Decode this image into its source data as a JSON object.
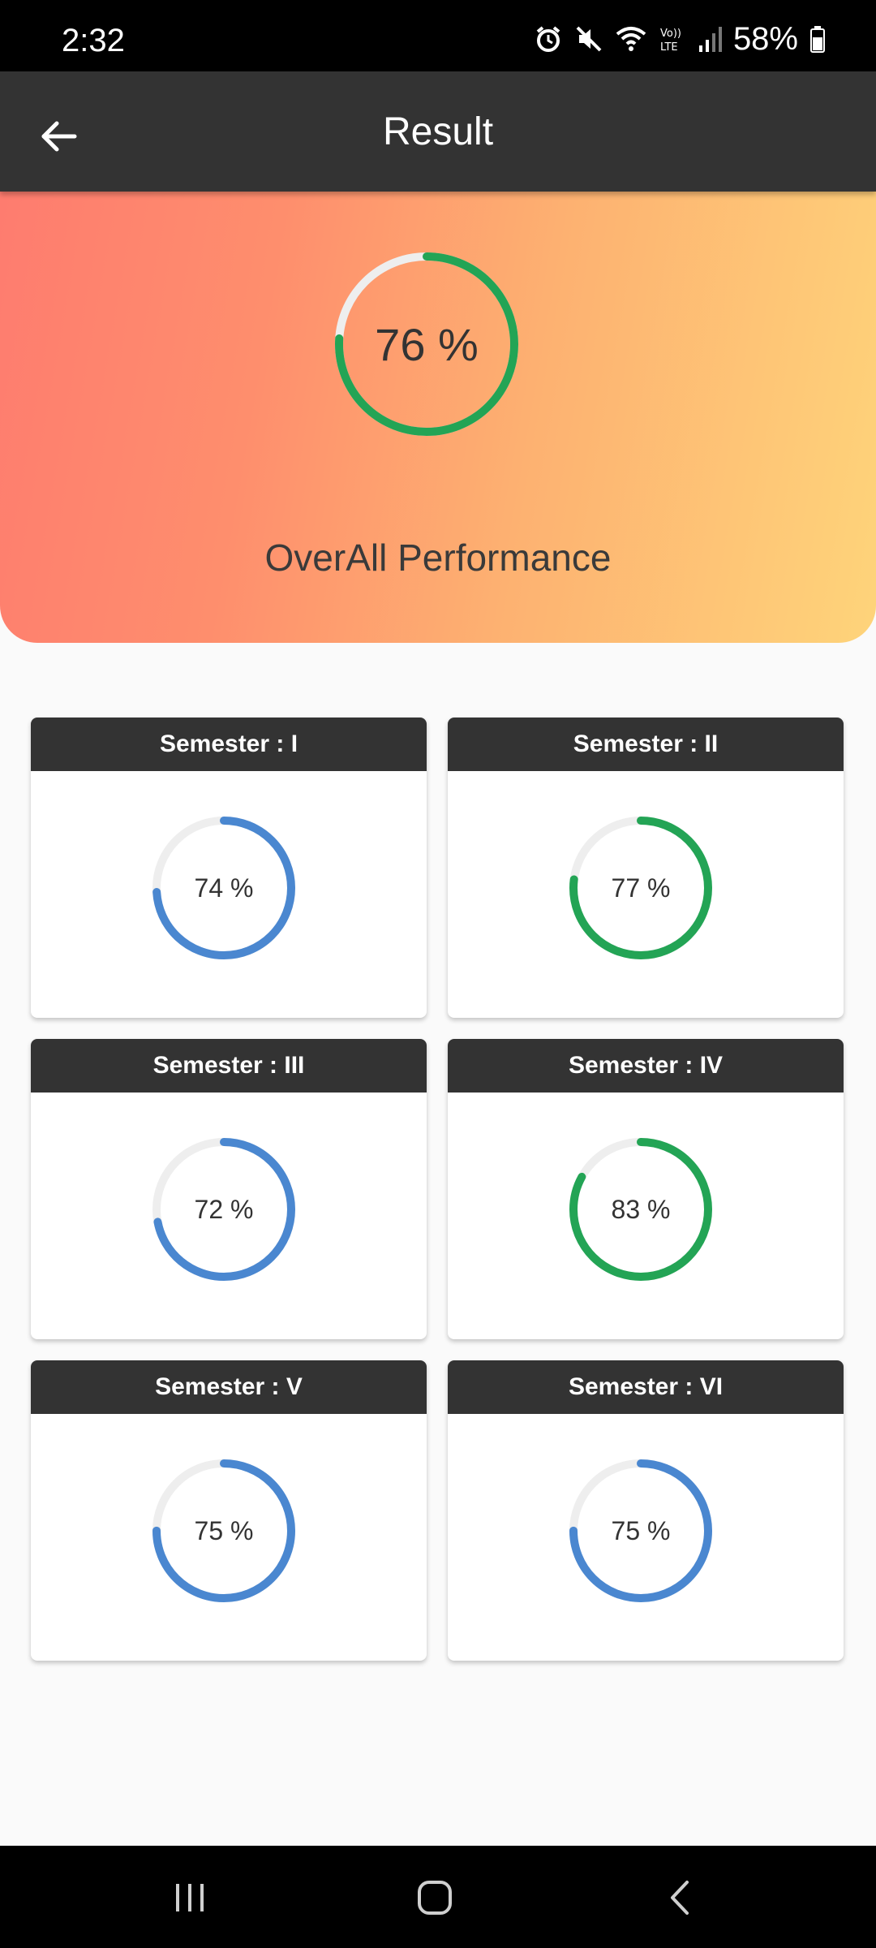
{
  "status_bar": {
    "time": "2:32",
    "battery": "58%",
    "icons": [
      "alarm-icon",
      "mute-icon",
      "wifi-icon",
      "volte-icon",
      "signal-icon",
      "battery-icon"
    ]
  },
  "app_bar": {
    "title": "Result",
    "back_icon": "arrow-left-icon"
  },
  "overall": {
    "value": 76,
    "label": "76 %",
    "caption": "OverAll Performance",
    "color": "#23a455"
  },
  "semesters": [
    {
      "title": "Semester : I",
      "value": 74,
      "label": "74 %",
      "color": "#4a87d0"
    },
    {
      "title": "Semester : II",
      "value": 77,
      "label": "77 %",
      "color": "#23a455"
    },
    {
      "title": "Semester : III",
      "value": 72,
      "label": "72 %",
      "color": "#4a87d0"
    },
    {
      "title": "Semester : IV",
      "value": 83,
      "label": "83 %",
      "color": "#23a455"
    },
    {
      "title": "Semester : V",
      "value": 75,
      "label": "75 %",
      "color": "#4a87d0"
    },
    {
      "title": "Semester : VI",
      "value": 75,
      "label": "75 %",
      "color": "#4a87d0"
    }
  ],
  "colors": {
    "track": "#eeeeee",
    "header": "#333333",
    "background": "#fafafa"
  },
  "nav_bar": {
    "icons": [
      "recent-apps-icon",
      "home-icon",
      "back-icon"
    ]
  }
}
